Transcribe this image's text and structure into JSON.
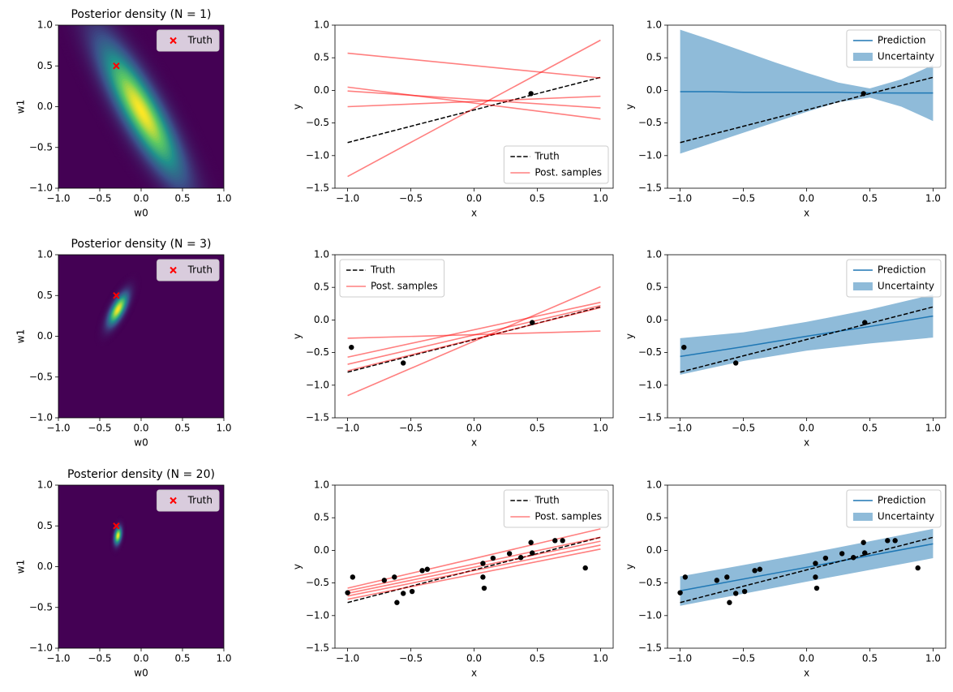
{
  "chart_data": [
    {
      "type": "density",
      "title": "Posterior density (N = 1)",
      "xlabel": "w0",
      "ylabel": "w1",
      "xlim": [
        -1,
        1
      ],
      "ylim": [
        -1,
        1
      ],
      "xticks": [
        {
          "value": -1,
          "label": "−1.0"
        },
        {
          "value": -0.5,
          "label": "−0.5"
        },
        {
          "value": 0,
          "label": "0.0"
        },
        {
          "value": 0.5,
          "label": "0.5"
        },
        {
          "value": 1,
          "label": "1.0"
        }
      ],
      "yticks": [
        {
          "value": -1,
          "label": "−1.0"
        },
        {
          "value": -0.5,
          "label": "−0.5"
        },
        {
          "value": 0,
          "label": "0.0"
        },
        {
          "value": 0.5,
          "label": "0.5"
        },
        {
          "value": 1,
          "label": "1.0"
        }
      ],
      "density": {
        "mean": [
          0,
          -0.05
        ],
        "std": [
          0.33,
          0.55
        ],
        "corr": -0.85
      },
      "truth": {
        "name": "Truth",
        "color": "#ff0000",
        "x": -0.3,
        "y": 0.5
      },
      "legend": "upper right"
    },
    {
      "type": "line",
      "xlabel": "x",
      "ylabel": "y",
      "xlim": [
        -1.1,
        1.1
      ],
      "ylim": [
        -1.5,
        1
      ],
      "xticks": [
        {
          "value": -1,
          "label": "−1.0"
        },
        {
          "value": -0.5,
          "label": "−0.5"
        },
        {
          "value": 0,
          "label": "0.0"
        },
        {
          "value": 0.5,
          "label": "0.5"
        },
        {
          "value": 1,
          "label": "1.0"
        }
      ],
      "yticks": [
        {
          "value": -1.5,
          "label": "−1.5"
        },
        {
          "value": -1,
          "label": "−1.0"
        },
        {
          "value": -0.5,
          "label": "−0.5"
        },
        {
          "value": 0,
          "label": "0.0"
        },
        {
          "value": 0.5,
          "label": "0.5"
        },
        {
          "value": 1,
          "label": "1.0"
        }
      ],
      "truth": {
        "name": "Truth",
        "color": "#000000",
        "x": [
          -1,
          1
        ],
        "values": [
          -0.8,
          0.2
        ]
      },
      "samples": {
        "name": "Post. samples",
        "color": "#ff0000",
        "alpha": 0.5,
        "x": [
          -1,
          1
        ],
        "values": [
          [
            0.57,
            0.19
          ],
          [
            0.05,
            -0.44
          ],
          [
            -0.01,
            -0.27
          ],
          [
            -0.25,
            -0.09
          ],
          [
            -1.32,
            0.77
          ]
        ]
      },
      "points": {
        "color": "#000000",
        "x": [
          0.45
        ],
        "values": [
          -0.05
        ]
      },
      "legend": "lower right"
    },
    {
      "type": "band",
      "xlabel": "x",
      "ylabel": "y",
      "xlim": [
        -1.1,
        1.1
      ],
      "ylim": [
        -1.5,
        1
      ],
      "xticks": [
        {
          "value": -1,
          "label": "−1.0"
        },
        {
          "value": -0.5,
          "label": "−0.5"
        },
        {
          "value": 0,
          "label": "0.0"
        },
        {
          "value": 0.5,
          "label": "0.5"
        },
        {
          "value": 1,
          "label": "1.0"
        }
      ],
      "yticks": [
        {
          "value": -1.5,
          "label": "−1.5"
        },
        {
          "value": -1,
          "label": "−1.0"
        },
        {
          "value": -0.5,
          "label": "−0.5"
        },
        {
          "value": 0,
          "label": "0.0"
        },
        {
          "value": 0.5,
          "label": "0.5"
        },
        {
          "value": 1,
          "label": "1.0"
        }
      ],
      "truth": {
        "name": "Truth",
        "color": "#000000",
        "x": [
          -1,
          1
        ],
        "values": [
          -0.8,
          0.2
        ]
      },
      "prediction": {
        "name": "Prediction",
        "color": "#1f77b4",
        "x": [
          -1,
          -0.75,
          -0.5,
          -0.25,
          0,
          0.25,
          0.5,
          0.75,
          1
        ],
        "values": [
          -0.02,
          -0.02,
          -0.03,
          -0.03,
          -0.03,
          -0.03,
          -0.04,
          -0.04,
          -0.04
        ]
      },
      "uncertainty": {
        "name": "Uncertainty",
        "color": "#1f77b4",
        "alpha": 0.5,
        "x": [
          -1,
          -0.75,
          -0.5,
          -0.25,
          0,
          0.25,
          0.5,
          0.75,
          1
        ],
        "lower": [
          -0.97,
          -0.81,
          -0.65,
          -0.49,
          -0.33,
          -0.18,
          -0.11,
          -0.25,
          -0.47
        ],
        "upper": [
          0.93,
          0.77,
          0.6,
          0.43,
          0.27,
          0.12,
          0.03,
          0.17,
          0.39
        ]
      },
      "points": {
        "color": "#000000",
        "x": [
          0.45
        ],
        "values": [
          -0.05
        ]
      },
      "legend": "upper right"
    },
    {
      "type": "density",
      "title": "Posterior density (N = 3)",
      "xlabel": "w0",
      "ylabel": "w1",
      "xlim": [
        -1,
        1
      ],
      "ylim": [
        -1,
        1
      ],
      "xticks": [
        {
          "value": -1,
          "label": "−1.0"
        },
        {
          "value": -0.5,
          "label": "−0.5"
        },
        {
          "value": 0,
          "label": "0.0"
        },
        {
          "value": 0.5,
          "label": "0.5"
        },
        {
          "value": 1,
          "label": "1.0"
        }
      ],
      "yticks": [
        {
          "value": -1,
          "label": "−1.0"
        },
        {
          "value": -0.5,
          "label": "−0.5"
        },
        {
          "value": 0,
          "label": "0.0"
        },
        {
          "value": 0.5,
          "label": "0.5"
        },
        {
          "value": 1,
          "label": "1.0"
        }
      ],
      "density": {
        "mean": [
          -0.28,
          0.33
        ],
        "std": [
          0.08,
          0.13
        ],
        "corr": 0.7
      },
      "truth": {
        "name": "Truth",
        "color": "#ff0000",
        "x": -0.3,
        "y": 0.5
      },
      "legend": "upper right"
    },
    {
      "type": "line",
      "xlabel": "x",
      "ylabel": "y",
      "xlim": [
        -1.1,
        1.1
      ],
      "ylim": [
        -1.5,
        1
      ],
      "xticks": [
        {
          "value": -1,
          "label": "−1.0"
        },
        {
          "value": -0.5,
          "label": "−0.5"
        },
        {
          "value": 0,
          "label": "0.0"
        },
        {
          "value": 0.5,
          "label": "0.5"
        },
        {
          "value": 1,
          "label": "1.0"
        }
      ],
      "yticks": [
        {
          "value": -1.5,
          "label": "−1.5"
        },
        {
          "value": -1,
          "label": "−1.0"
        },
        {
          "value": -0.5,
          "label": "−0.5"
        },
        {
          "value": 0,
          "label": "0.0"
        },
        {
          "value": 0.5,
          "label": "0.5"
        },
        {
          "value": 1,
          "label": "1.0"
        }
      ],
      "truth": {
        "name": "Truth",
        "color": "#000000",
        "x": [
          -1,
          1
        ],
        "values": [
          -0.8,
          0.2
        ]
      },
      "samples": {
        "name": "Post. samples",
        "color": "#ff0000",
        "alpha": 0.5,
        "x": [
          -1,
          1
        ],
        "values": [
          [
            -0.28,
            -0.17
          ],
          [
            -0.57,
            0.27
          ],
          [
            -0.68,
            0.22
          ],
          [
            -0.78,
            0.19
          ],
          [
            -1.16,
            0.51
          ]
        ]
      },
      "points": {
        "color": "#000000",
        "x": [
          -0.97,
          -0.56,
          0.46
        ],
        "values": [
          -0.42,
          -0.66,
          -0.04
        ]
      },
      "legend": "upper left"
    },
    {
      "type": "band",
      "xlabel": "x",
      "ylabel": "y",
      "xlim": [
        -1.1,
        1.1
      ],
      "ylim": [
        -1.5,
        1
      ],
      "xticks": [
        {
          "value": -1,
          "label": "−1.0"
        },
        {
          "value": -0.5,
          "label": "−0.5"
        },
        {
          "value": 0,
          "label": "0.0"
        },
        {
          "value": 0.5,
          "label": "0.5"
        },
        {
          "value": 1,
          "label": "1.0"
        }
      ],
      "yticks": [
        {
          "value": -1.5,
          "label": "−1.5"
        },
        {
          "value": -1,
          "label": "−1.0"
        },
        {
          "value": -0.5,
          "label": "−0.5"
        },
        {
          "value": 0,
          "label": "0.0"
        },
        {
          "value": 0.5,
          "label": "0.5"
        },
        {
          "value": 1,
          "label": "1.0"
        }
      ],
      "truth": {
        "name": "Truth",
        "color": "#000000",
        "x": [
          -1,
          1
        ],
        "values": [
          -0.8,
          0.2
        ]
      },
      "prediction": {
        "name": "Prediction",
        "color": "#1f77b4",
        "x": [
          -1,
          -0.5,
          0,
          0.5,
          1
        ],
        "values": [
          -0.56,
          -0.41,
          -0.25,
          -0.1,
          0.06
        ]
      },
      "uncertainty": {
        "name": "Uncertainty",
        "color": "#1f77b4",
        "alpha": 0.5,
        "x": [
          -1,
          -0.5,
          0,
          0.5,
          1
        ],
        "lower": [
          -0.84,
          -0.63,
          -0.47,
          -0.36,
          -0.27
        ],
        "upper": [
          -0.28,
          -0.19,
          -0.03,
          0.16,
          0.39
        ]
      },
      "points": {
        "color": "#000000",
        "x": [
          -0.97,
          -0.56,
          0.46
        ],
        "values": [
          -0.42,
          -0.66,
          -0.04
        ]
      },
      "legend": "upper right"
    },
    {
      "type": "density",
      "title": "Posterior density (N = 20)",
      "xlabel": "w0",
      "ylabel": "w1",
      "xlim": [
        -1,
        1
      ],
      "ylim": [
        -1,
        1
      ],
      "xticks": [
        {
          "value": -1,
          "label": "−1.0"
        },
        {
          "value": -0.5,
          "label": "−0.5"
        },
        {
          "value": 0,
          "label": "0.0"
        },
        {
          "value": 0.5,
          "label": "0.5"
        },
        {
          "value": 1,
          "label": "1.0"
        }
      ],
      "yticks": [
        {
          "value": -1,
          "label": "−1.0"
        },
        {
          "value": -0.5,
          "label": "−0.5"
        },
        {
          "value": 0,
          "label": "0.0"
        },
        {
          "value": 0.5,
          "label": "0.5"
        },
        {
          "value": 1,
          "label": "1.0"
        }
      ],
      "density": {
        "mean": [
          -0.28,
          0.38
        ],
        "std": [
          0.03,
          0.07
        ],
        "corr": 0.3
      },
      "truth": {
        "name": "Truth",
        "color": "#ff0000",
        "x": -0.3,
        "y": 0.5
      },
      "legend": "upper right"
    },
    {
      "type": "line",
      "xlabel": "x",
      "ylabel": "y",
      "xlim": [
        -1.1,
        1.1
      ],
      "ylim": [
        -1.5,
        1
      ],
      "xticks": [
        {
          "value": -1,
          "label": "−1.0"
        },
        {
          "value": -0.5,
          "label": "−0.5"
        },
        {
          "value": 0,
          "label": "0.0"
        },
        {
          "value": 0.5,
          "label": "0.5"
        },
        {
          "value": 1,
          "label": "1.0"
        }
      ],
      "yticks": [
        {
          "value": -1.5,
          "label": "−1.5"
        },
        {
          "value": -1,
          "label": "−1.0"
        },
        {
          "value": -0.5,
          "label": "−0.5"
        },
        {
          "value": 0,
          "label": "0.0"
        },
        {
          "value": 0.5,
          "label": "0.5"
        },
        {
          "value": 1,
          "label": "1.0"
        }
      ],
      "truth": {
        "name": "Truth",
        "color": "#000000",
        "x": [
          -1,
          1
        ],
        "values": [
          -0.8,
          0.2
        ]
      },
      "samples": {
        "name": "Post. samples",
        "color": "#ff0000",
        "alpha": 0.5,
        "x": [
          -1,
          1
        ],
        "values": [
          [
            -0.58,
            0.33
          ],
          [
            -0.62,
            0.2
          ],
          [
            -0.66,
            0.14
          ],
          [
            -0.7,
            0.08
          ],
          [
            -0.75,
            0.02
          ]
        ]
      },
      "points": {
        "color": "#000000",
        "x": [
          -1.0,
          -0.96,
          -0.71,
          -0.63,
          -0.61,
          -0.56,
          -0.49,
          -0.41,
          -0.37,
          0.07,
          0.07,
          0.08,
          0.15,
          0.28,
          0.37,
          0.45,
          0.46,
          0.64,
          0.7,
          0.88
        ],
        "values": [
          -0.65,
          -0.41,
          -0.46,
          -0.41,
          -0.8,
          -0.66,
          -0.63,
          -0.31,
          -0.29,
          -0.2,
          -0.41,
          -0.58,
          -0.12,
          -0.05,
          -0.11,
          0.12,
          -0.04,
          0.15,
          0.15,
          -0.27
        ]
      },
      "legend": "upper right"
    },
    {
      "type": "band",
      "xlabel": "x",
      "ylabel": "y",
      "xlim": [
        -1.1,
        1.1
      ],
      "ylim": [
        -1.5,
        1
      ],
      "xticks": [
        {
          "value": -1,
          "label": "−1.0"
        },
        {
          "value": -0.5,
          "label": "−0.5"
        },
        {
          "value": 0,
          "label": "0.0"
        },
        {
          "value": 0.5,
          "label": "0.5"
        },
        {
          "value": 1,
          "label": "1.0"
        }
      ],
      "yticks": [
        {
          "value": -1.5,
          "label": "−1.5"
        },
        {
          "value": -1,
          "label": "−1.0"
        },
        {
          "value": -0.5,
          "label": "−0.5"
        },
        {
          "value": 0,
          "label": "0.0"
        },
        {
          "value": 0.5,
          "label": "0.5"
        },
        {
          "value": 1,
          "label": "1.0"
        }
      ],
      "truth": {
        "name": "Truth",
        "color": "#000000",
        "x": [
          -1,
          1
        ],
        "values": [
          -0.8,
          0.2
        ]
      },
      "prediction": {
        "name": "Prediction",
        "color": "#1f77b4",
        "x": [
          -1,
          0,
          1
        ],
        "values": [
          -0.62,
          -0.26,
          0.1
        ]
      },
      "uncertainty": {
        "name": "Uncertainty",
        "color": "#1f77b4",
        "alpha": 0.5,
        "x": [
          -1,
          0,
          1
        ],
        "lower": [
          -0.85,
          -0.48,
          -0.12
        ],
        "upper": [
          -0.4,
          -0.05,
          0.33
        ]
      },
      "points": {
        "color": "#000000",
        "x": [
          -1.0,
          -0.96,
          -0.71,
          -0.63,
          -0.61,
          -0.56,
          -0.49,
          -0.41,
          -0.37,
          0.07,
          0.07,
          0.08,
          0.15,
          0.28,
          0.37,
          0.45,
          0.46,
          0.64,
          0.7,
          0.88
        ],
        "values": [
          -0.65,
          -0.41,
          -0.46,
          -0.41,
          -0.8,
          -0.66,
          -0.63,
          -0.31,
          -0.29,
          -0.2,
          -0.41,
          -0.58,
          -0.12,
          -0.05,
          -0.11,
          0.12,
          -0.04,
          0.15,
          0.15,
          -0.27
        ]
      },
      "legend": "upper right"
    }
  ]
}
